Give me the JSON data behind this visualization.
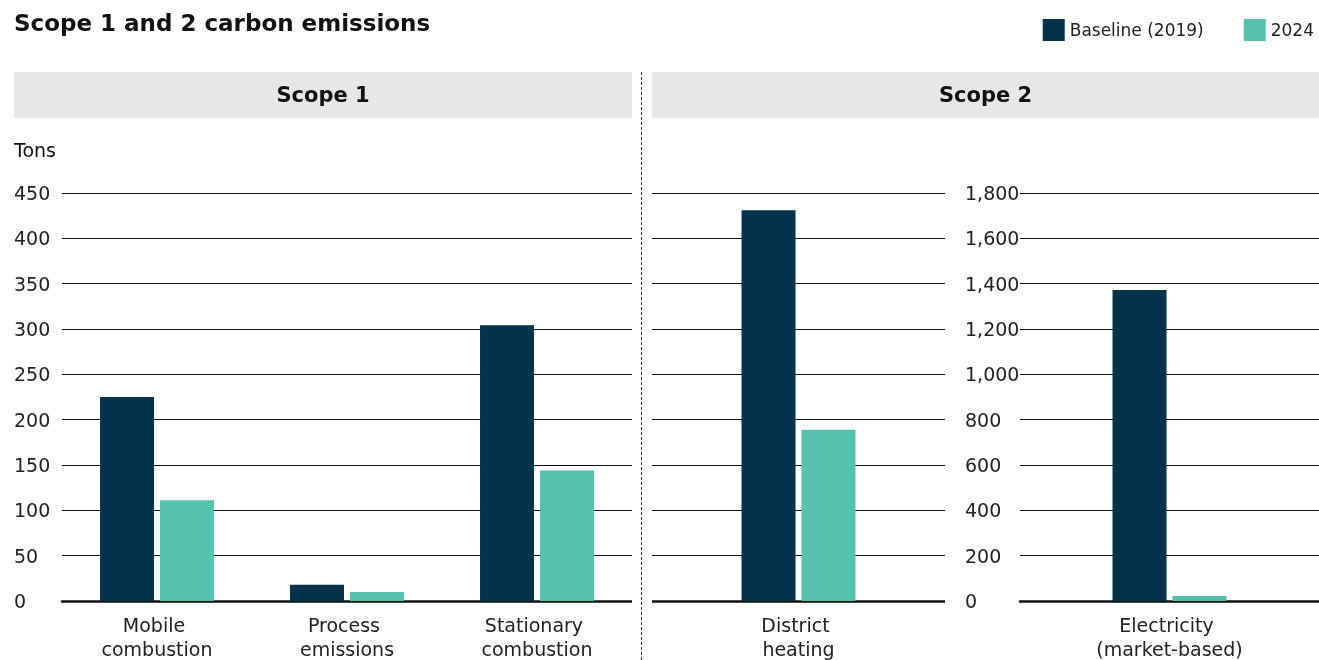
{
  "chart_data": [
    {
      "type": "bar",
      "title": "Scope 1 and 2 carbon emissions",
      "subtitle": "Scope 1",
      "ylabel": "Tons",
      "categories": [
        "Mobile combustion",
        "Process emissions",
        "Stationary combustion"
      ],
      "series": [
        {
          "color": "#02334a",
          "values": [
            225,
            18,
            304
          ]
        },
        {
          "color": "#55c2ae",
          "values": [
            111,
            10,
            144
          ]
        }
      ],
      "ylim": [
        0,
        450
      ],
      "yticks": [
        0,
        50,
        100,
        150,
        200,
        250,
        300,
        350,
        400,
        450
      ],
      "grid": "y",
      "legend": false
    },
    {
      "type": "bar",
      "subtitle": "Scope 2",
      "categories": [
        "District heating"
      ],
      "series": [
        {
          "color": "#02334a",
          "values": [
            431
          ]
        },
        {
          "color": "#55c2ae",
          "values": [
            189
          ]
        }
      ],
      "ylim": [
        0,
        450
      ],
      "yticks": [
        0,
        50,
        100,
        150,
        200,
        250,
        300,
        350,
        400,
        450
      ],
      "grid": "y",
      "legend": false,
      "tick_labels": "x"
    },
    {
      "type": "bar",
      "categories": [
        "Electricity (market-based)"
      ],
      "series": [
        {
          "name": "Baseline (2019)",
          "color": "#02334a",
          "values": [
            1372
          ]
        },
        {
          "name": "2024",
          "color": "#55c2ae",
          "values": [
            22
          ]
        }
      ],
      "ylim": [
        0,
        1800
      ],
      "yticks": [
        0,
        200,
        400,
        600,
        800,
        {
          "value": 1000,
          "label": "1,000"
        },
        {
          "value": 1200,
          "label": "1,200"
        },
        {
          "value": 1400,
          "label": "1,400"
        },
        {
          "value": 1600,
          "label": "1,600"
        },
        {
          "value": 1800,
          "label": "1,800"
        }
      ],
      "grid": "y",
      "legend": "top right"
    }
  ]
}
